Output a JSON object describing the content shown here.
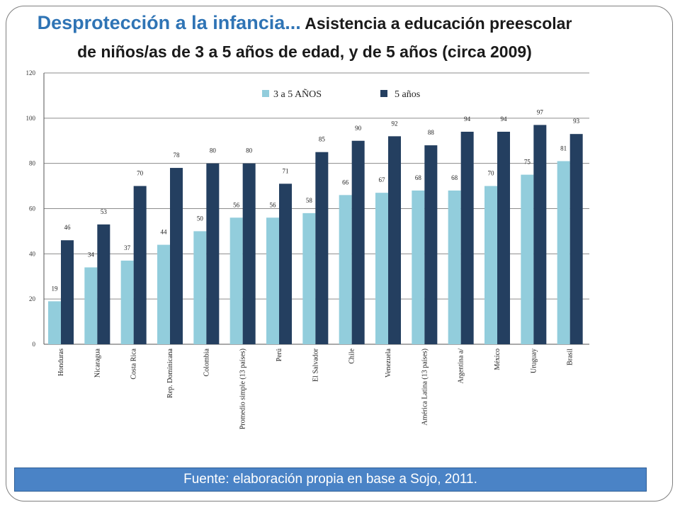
{
  "title": {
    "main": "Desprotección a la infancia...",
    "rest": " Asistencia a educación preescolar de niños/as de 3 a 5 años de edad, y de 5 años (circa 2009)"
  },
  "footer": {
    "source": "Fuente: elaboración propia en base a Sojo, 2011."
  },
  "colors": {
    "series_3a5": "#92cddc",
    "series_5": "#243f60",
    "frame": "#7f7f7f",
    "title_main": "#2f74b5",
    "footer_bg": "#4a83c6"
  },
  "chart_data": {
    "type": "bar",
    "title": "",
    "xlabel": "",
    "ylabel": "",
    "ylim": [
      0,
      120
    ],
    "yticks": [
      0,
      20,
      40,
      60,
      80,
      100,
      120
    ],
    "grid": true,
    "legend_position": "top-center",
    "categories": [
      "Honduras",
      "Nicaragua",
      "Costa Rica",
      "Rep. Dominicana",
      "Colombia",
      "Promedio simple (13 países)",
      "Perú",
      "El Salvador",
      "Chile",
      "Venezuela",
      "América Latina (13 países)",
      "Argentina a/",
      "México",
      "Uruguay",
      "Brasil"
    ],
    "series": [
      {
        "name": "3 a 5 AÑOS",
        "values": [
          19,
          34,
          37,
          44,
          50,
          56,
          56,
          58,
          66,
          67,
          68,
          68,
          70,
          75,
          81
        ]
      },
      {
        "name": "5 años",
        "values": [
          46,
          53,
          70,
          78,
          80,
          80,
          71,
          85,
          90,
          92,
          88,
          94,
          94,
          97,
          93
        ]
      }
    ]
  }
}
